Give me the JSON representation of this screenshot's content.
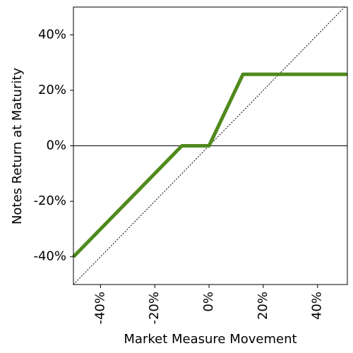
{
  "chart_data": {
    "type": "line",
    "xlabel": "Market Measure Movement",
    "ylabel": "Notes Return at Maturity",
    "series": [
      {
        "color": "#4f8a1c",
        "width": 5,
        "dash": "none",
        "x": [
          -50,
          -10,
          0,
          12.5,
          51
        ],
        "values": [
          -40,
          0,
          0,
          25.75,
          25.75
        ]
      },
      {
        "color": "#000000",
        "width": 1,
        "dash": "2,2",
        "x": [
          -50,
          50
        ],
        "values": [
          -50,
          50
        ]
      }
    ],
    "xlim": [
      -50,
      51
    ],
    "ylim": [
      -50,
      50
    ],
    "xticks": [
      {
        "value": -40,
        "label": "-40%"
      },
      {
        "value": -20,
        "label": "-20%"
      },
      {
        "value": 0,
        "label": "0%"
      },
      {
        "value": 20,
        "label": "20%"
      },
      {
        "value": 40,
        "label": "40%"
      }
    ],
    "yticks": [
      {
        "value": -40,
        "label": "-40%"
      },
      {
        "value": -20,
        "label": "-20%"
      },
      {
        "value": 0,
        "label": "0%"
      },
      {
        "value": 20,
        "label": "20%"
      },
      {
        "value": 40,
        "label": "40%"
      }
    ],
    "zero_line": true
  }
}
